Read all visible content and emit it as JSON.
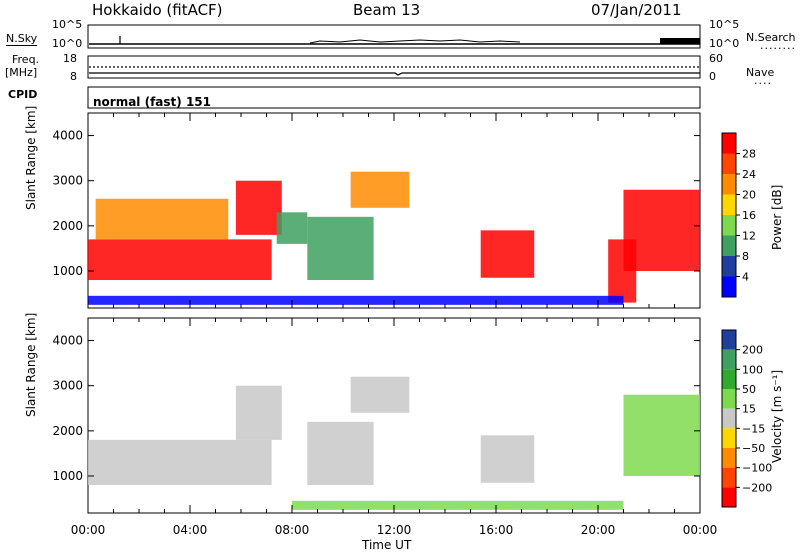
{
  "header": {
    "station": "Hokkaido (fitACF)",
    "beam": "Beam 13",
    "date": "07/Jan/2011"
  },
  "noise_panel": {
    "left_label": "N.Sky",
    "right_label": "N.Search",
    "left_ticks": [
      "10^5",
      "10^0"
    ],
    "right_ticks": [
      "10^5",
      "10^0"
    ]
  },
  "freq_panel": {
    "left_label_top": "Freq.",
    "left_label_unit": "[MHz]",
    "left_ticks": [
      "18",
      "8"
    ],
    "right_label": "Nave",
    "right_ticks": [
      "60",
      "0"
    ]
  },
  "cpid_panel": {
    "label": "CPID",
    "mode": "normal (fast) 151"
  },
  "x_axis": {
    "label": "Time UT",
    "ticks": [
      "00:00",
      "04:00",
      "08:00",
      "12:00",
      "16:00",
      "20:00",
      "00:00"
    ]
  },
  "colors": {
    "red": "#ff0000",
    "orange": "#ff8c00",
    "yellow": "#ffd700",
    "light_green": "#7fd94f",
    "green": "#3fa05f",
    "dark_blue": "#1f3f9f",
    "blue": "#0000ff",
    "gray": "#c8c8c8"
  },
  "chart_data": [
    {
      "type": "heatmap",
      "ylabel": "Slant Range [km]",
      "xlabel": "Time UT",
      "y_ticks": [
        "4000",
        "3000",
        "2000",
        "1000"
      ],
      "ylim": [
        180,
        4500
      ],
      "xlim_hours": [
        0,
        24
      ],
      "colorbar": {
        "label": "Power [dB]",
        "ticks": [
          "28",
          "24",
          "20",
          "16",
          "12",
          "8",
          "4"
        ],
        "range": [
          0,
          32
        ],
        "bands": [
          "#ff0000",
          "#ff4500",
          "#ff8c00",
          "#ffd700",
          "#7fd94f",
          "#3fa05f",
          "#1f3f9f",
          "#0000ff"
        ]
      },
      "regions": [
        {
          "t": [
            0.0,
            7.2
          ],
          "r": [
            800,
            1700
          ],
          "level": "red"
        },
        {
          "t": [
            0.3,
            5.5
          ],
          "r": [
            1700,
            2600
          ],
          "level": "orange"
        },
        {
          "t": [
            5.8,
            7.6
          ],
          "r": [
            1800,
            3000
          ],
          "level": "red"
        },
        {
          "t": [
            7.4,
            8.6
          ],
          "r": [
            1600,
            2300
          ],
          "level": "green"
        },
        {
          "t": [
            8.6,
            11.2
          ],
          "r": [
            800,
            2200
          ],
          "level": "green"
        },
        {
          "t": [
            10.3,
            12.6
          ],
          "r": [
            2400,
            3200
          ],
          "level": "orange"
        },
        {
          "t": [
            15.4,
            17.5
          ],
          "r": [
            850,
            1900
          ],
          "level": "red"
        },
        {
          "t": [
            20.4,
            21.5
          ],
          "r": [
            300,
            1700
          ],
          "level": "red"
        },
        {
          "t": [
            21.0,
            24.0
          ],
          "r": [
            1000,
            2800
          ],
          "level": "red"
        },
        {
          "t": [
            0.0,
            21.0
          ],
          "r": [
            250,
            450
          ],
          "level": "blue"
        }
      ]
    },
    {
      "type": "heatmap",
      "ylabel": "Slant Range [km]",
      "xlabel": "Time UT",
      "y_ticks": [
        "4000",
        "3000",
        "2000",
        "1000"
      ],
      "ylim": [
        180,
        4500
      ],
      "xlim_hours": [
        0,
        24
      ],
      "colorbar": {
        "label": "Velocity [m s⁻¹]",
        "ticks": [
          "200",
          "100",
          "50",
          "15",
          "−15",
          "−50",
          "−100",
          "−200"
        ],
        "range": [
          -250,
          250
        ],
        "bands": [
          "#1f3f9f",
          "#3fa05f",
          "#2faa2f",
          "#7fd94f",
          "#c8c8c8",
          "#ffd700",
          "#ff8c00",
          "#ff4500",
          "#ff0000"
        ]
      },
      "regions": [
        {
          "t": [
            0.0,
            7.2
          ],
          "r": [
            800,
            1800
          ],
          "level": "gray"
        },
        {
          "t": [
            5.8,
            7.6
          ],
          "r": [
            1800,
            3000
          ],
          "level": "gray"
        },
        {
          "t": [
            8.6,
            11.2
          ],
          "r": [
            800,
            2200
          ],
          "level": "gray"
        },
        {
          "t": [
            10.3,
            12.6
          ],
          "r": [
            2400,
            3200
          ],
          "level": "gray"
        },
        {
          "t": [
            15.4,
            17.5
          ],
          "r": [
            850,
            1900
          ],
          "level": "gray"
        },
        {
          "t": [
            21.0,
            24.0
          ],
          "r": [
            1000,
            2800
          ],
          "level": "light_green"
        },
        {
          "t": [
            8.0,
            21.0
          ],
          "r": [
            250,
            450
          ],
          "level": "light_green"
        }
      ]
    }
  ]
}
